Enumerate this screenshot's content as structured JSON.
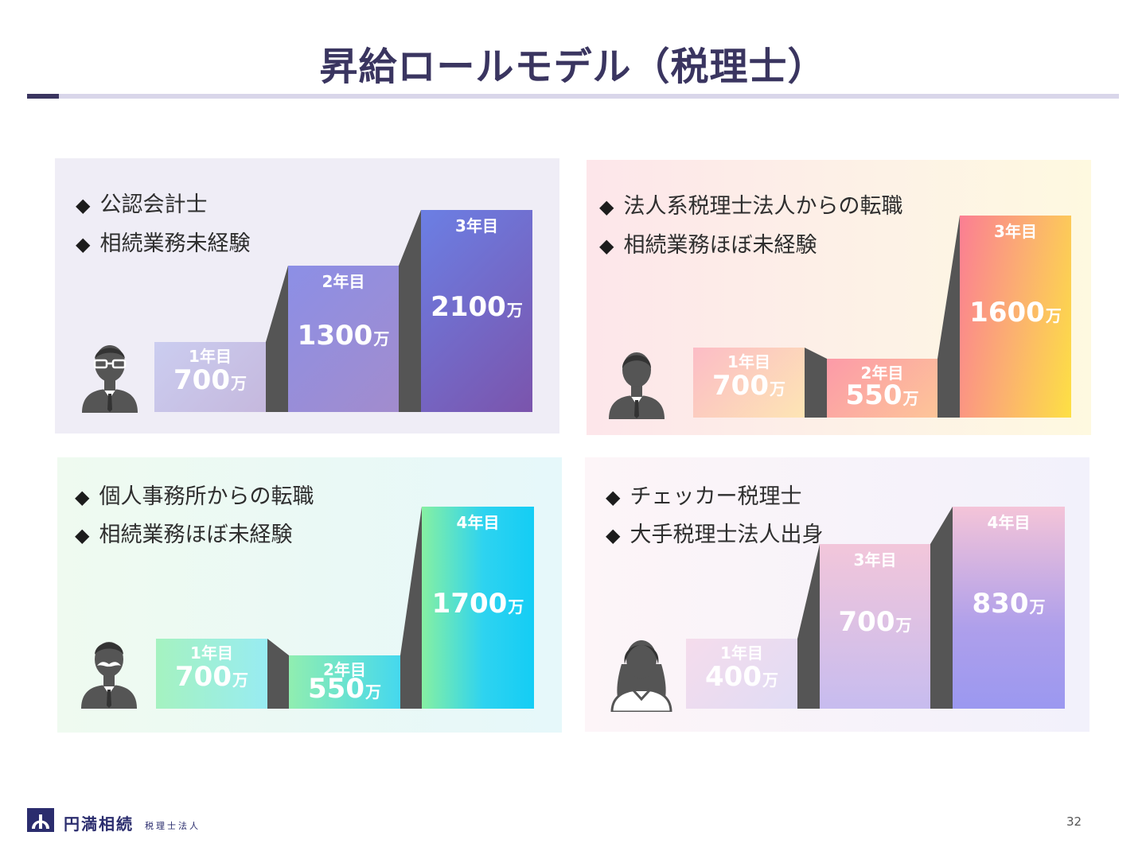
{
  "title": "昇給ロールモデル（税理士）",
  "unit": "万",
  "panels": [
    {
      "bullets": [
        "公認会計士",
        "相続業務未経験"
      ],
      "bars": [
        {
          "year": "1年目",
          "value": "700"
        },
        {
          "year": "2年目",
          "value": "1300"
        },
        {
          "year": "3年目",
          "value": "2100"
        }
      ]
    },
    {
      "bullets": [
        "法人系税理士法人からの転職",
        "相続業務ほぼ未経験"
      ],
      "bars": [
        {
          "year": "1年目",
          "value": "700"
        },
        {
          "year": "2年目",
          "value": "550"
        },
        {
          "year": "3年目",
          "value": "1600"
        }
      ]
    },
    {
      "bullets": [
        "個人事務所からの転職",
        "相続業務ほぼ未経験"
      ],
      "bars": [
        {
          "year": "1年目",
          "value": "700"
        },
        {
          "year": "2年目",
          "value": "550"
        },
        {
          "year": "4年目",
          "value": "1700"
        }
      ]
    },
    {
      "bullets": [
        "チェッカー税理士",
        "大手税理士法人出身"
      ],
      "bars": [
        {
          "year": "1年目",
          "value": "400"
        },
        {
          "year": "3年目",
          "value": "700"
        },
        {
          "year": "4年目",
          "value": "830"
        }
      ]
    }
  ],
  "icons": {
    "person1": "man-with-glasses-icon",
    "person2": "man-icon",
    "person3": "man-with-mustache-icon",
    "person4": "woman-icon",
    "bullet": "diamond-icon",
    "logo": "company-logo-icon"
  },
  "footer": {
    "company": "円満相続",
    "company_sub": "税理士法人",
    "page": "32"
  },
  "colors": {
    "title": "#3a3560",
    "accent": "#3a3560",
    "step": "#555555"
  }
}
